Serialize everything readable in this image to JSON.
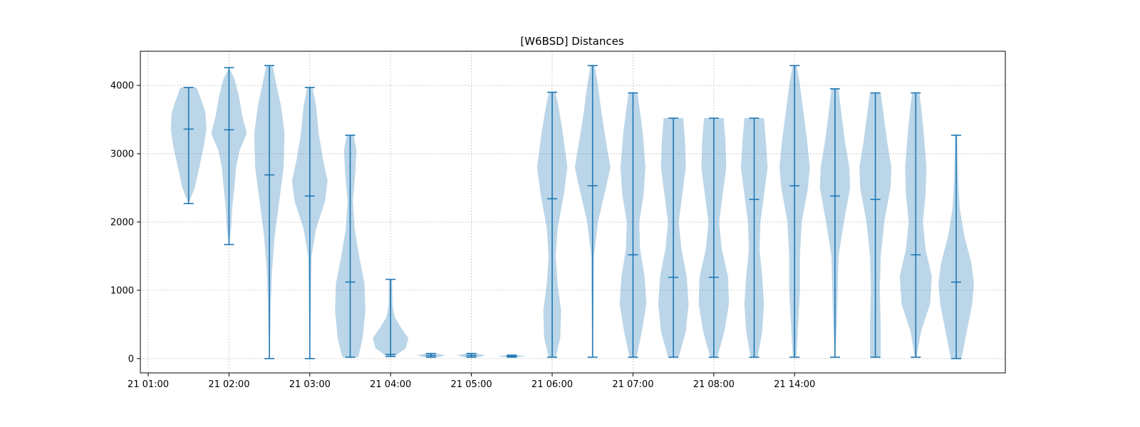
{
  "chart_data": {
    "type": "violin",
    "title": "[W6BSD] Distances",
    "xlabel": "",
    "ylabel": "",
    "ylim": [
      -210,
      4500
    ],
    "grid": true,
    "grid_style": "dotted",
    "colors": {
      "body": "#1f77b4",
      "line": "#1f77b4",
      "grid": "#b0b0b0"
    },
    "x_ticks": [
      "21 01:00",
      "21 02:00",
      "21 03:00",
      "21 04:00",
      "21 05:00",
      "21 06:00",
      "21 07:00",
      "21 08:00",
      "21 14:00"
    ],
    "y_ticks": [
      0,
      1000,
      2000,
      3000,
      4000
    ],
    "violins": [
      {
        "min": 2270,
        "max": 3970,
        "median": 3360,
        "density": [
          [
            2270,
            0.0
          ],
          [
            2500,
            0.35
          ],
          [
            2800,
            0.6
          ],
          [
            3100,
            0.85
          ],
          [
            3350,
            1.0
          ],
          [
            3600,
            0.95
          ],
          [
            3800,
            0.7
          ],
          [
            3970,
            0.45
          ]
        ]
      },
      {
        "min": 1670,
        "max": 4260,
        "median": 3350,
        "density": [
          [
            1670,
            0.0
          ],
          [
            1900,
            0.12
          ],
          [
            2200,
            0.18
          ],
          [
            2500,
            0.3
          ],
          [
            2800,
            0.4
          ],
          [
            3050,
            0.6
          ],
          [
            3300,
            1.0
          ],
          [
            3550,
            0.75
          ],
          [
            3850,
            0.55
          ],
          [
            4100,
            0.3
          ],
          [
            4260,
            0.0
          ]
        ]
      },
      {
        "min": 0,
        "max": 4290,
        "median": 2690,
        "density": [
          [
            0,
            0.0
          ],
          [
            400,
            0.05
          ],
          [
            800,
            0.08
          ],
          [
            1300,
            0.15
          ],
          [
            1800,
            0.3
          ],
          [
            2300,
            0.55
          ],
          [
            2800,
            0.8
          ],
          [
            3300,
            0.85
          ],
          [
            3700,
            0.65
          ],
          [
            4000,
            0.4
          ],
          [
            4290,
            0.18
          ]
        ]
      },
      {
        "min": 0,
        "max": 3970,
        "median": 2380,
        "density": [
          [
            0,
            0.0
          ],
          [
            500,
            0.04
          ],
          [
            1000,
            0.06
          ],
          [
            1500,
            0.1
          ],
          [
            1900,
            0.35
          ],
          [
            2300,
            0.85
          ],
          [
            2600,
            1.0
          ],
          [
            2900,
            0.75
          ],
          [
            3300,
            0.5
          ],
          [
            3700,
            0.35
          ],
          [
            3970,
            0.15
          ]
        ]
      },
      {
        "min": 20,
        "max": 3270,
        "median": 1120,
        "density": [
          [
            20,
            0.45
          ],
          [
            300,
            0.7
          ],
          [
            700,
            0.85
          ],
          [
            1100,
            0.8
          ],
          [
            1500,
            0.5
          ],
          [
            1900,
            0.25
          ],
          [
            2300,
            0.15
          ],
          [
            2700,
            0.28
          ],
          [
            3050,
            0.35
          ],
          [
            3270,
            0.2
          ]
        ]
      },
      {
        "min": 30,
        "max": 1160,
        "median": 60,
        "density": [
          [
            30,
            0.2
          ],
          [
            150,
            0.85
          ],
          [
            300,
            1.0
          ],
          [
            450,
            0.6
          ],
          [
            600,
            0.25
          ],
          [
            750,
            0.12
          ],
          [
            900,
            0.1
          ],
          [
            1050,
            0.1
          ],
          [
            1160,
            0.08
          ]
        ]
      },
      {
        "min": 20,
        "max": 75,
        "median": 45,
        "density": [
          [
            20,
            0.4
          ],
          [
            45,
            0.8
          ],
          [
            75,
            0.3
          ]
        ]
      },
      {
        "min": 20,
        "max": 75,
        "median": 45,
        "density": [
          [
            20,
            0.4
          ],
          [
            45,
            0.8
          ],
          [
            75,
            0.3
          ]
        ]
      },
      {
        "min": 20,
        "max": 50,
        "median": 35,
        "density": [
          [
            20,
            0.4
          ],
          [
            35,
            0.8
          ],
          [
            50,
            0.3
          ]
        ]
      },
      {
        "min": 20,
        "max": 3900,
        "median": 2340,
        "density": [
          [
            20,
            0.2
          ],
          [
            300,
            0.45
          ],
          [
            700,
            0.5
          ],
          [
            1100,
            0.3
          ],
          [
            1500,
            0.2
          ],
          [
            1900,
            0.3
          ],
          [
            2400,
            0.65
          ],
          [
            2800,
            0.85
          ],
          [
            3300,
            0.6
          ],
          [
            3700,
            0.35
          ],
          [
            3900,
            0.18
          ]
        ]
      },
      {
        "min": 20,
        "max": 4290,
        "median": 2530,
        "density": [
          [
            20,
            0.0
          ],
          [
            500,
            0.04
          ],
          [
            1000,
            0.06
          ],
          [
            1500,
            0.08
          ],
          [
            2000,
            0.3
          ],
          [
            2500,
            0.75
          ],
          [
            2800,
            1.0
          ],
          [
            3100,
            0.8
          ],
          [
            3600,
            0.5
          ],
          [
            4000,
            0.3
          ],
          [
            4290,
            0.12
          ]
        ]
      },
      {
        "min": 20,
        "max": 3890,
        "median": 1520,
        "density": [
          [
            20,
            0.2
          ],
          [
            400,
            0.5
          ],
          [
            800,
            0.75
          ],
          [
            1200,
            0.65
          ],
          [
            1600,
            0.4
          ],
          [
            2000,
            0.35
          ],
          [
            2400,
            0.6
          ],
          [
            2800,
            0.7
          ],
          [
            3300,
            0.55
          ],
          [
            3700,
            0.35
          ],
          [
            3890,
            0.25
          ]
        ]
      },
      {
        "min": 20,
        "max": 3520,
        "median": 1190,
        "density": [
          [
            20,
            0.3
          ],
          [
            400,
            0.7
          ],
          [
            800,
            0.85
          ],
          [
            1200,
            0.75
          ],
          [
            1600,
            0.45
          ],
          [
            2000,
            0.3
          ],
          [
            2400,
            0.5
          ],
          [
            2800,
            0.7
          ],
          [
            3200,
            0.65
          ],
          [
            3520,
            0.55
          ]
        ]
      },
      {
        "min": 20,
        "max": 3520,
        "median": 1190,
        "density": [
          [
            20,
            0.2
          ],
          [
            400,
            0.6
          ],
          [
            800,
            0.85
          ],
          [
            1200,
            0.8
          ],
          [
            1600,
            0.45
          ],
          [
            2000,
            0.3
          ],
          [
            2400,
            0.5
          ],
          [
            2800,
            0.7
          ],
          [
            3200,
            0.65
          ],
          [
            3520,
            0.55
          ]
        ]
      },
      {
        "min": 20,
        "max": 3520,
        "median": 2330,
        "density": [
          [
            20,
            0.2
          ],
          [
            400,
            0.45
          ],
          [
            800,
            0.55
          ],
          [
            1200,
            0.45
          ],
          [
            1600,
            0.3
          ],
          [
            2000,
            0.35
          ],
          [
            2400,
            0.55
          ],
          [
            2800,
            0.75
          ],
          [
            3200,
            0.65
          ],
          [
            3520,
            0.55
          ]
        ]
      },
      {
        "min": 20,
        "max": 4290,
        "median": 2530,
        "density": [
          [
            20,
            0.1
          ],
          [
            500,
            0.2
          ],
          [
            1000,
            0.3
          ],
          [
            1500,
            0.3
          ],
          [
            2000,
            0.4
          ],
          [
            2500,
            0.75
          ],
          [
            2800,
            0.85
          ],
          [
            3200,
            0.7
          ],
          [
            3700,
            0.45
          ],
          [
            4100,
            0.25
          ],
          [
            4290,
            0.1
          ]
        ]
      },
      {
        "min": 20,
        "max": 3950,
        "median": 2380,
        "density": [
          [
            20,
            0.0
          ],
          [
            500,
            0.1
          ],
          [
            1000,
            0.15
          ],
          [
            1500,
            0.2
          ],
          [
            2000,
            0.5
          ],
          [
            2500,
            0.85
          ],
          [
            2800,
            0.8
          ],
          [
            3200,
            0.55
          ],
          [
            3600,
            0.35
          ],
          [
            3950,
            0.2
          ]
        ]
      },
      {
        "min": 20,
        "max": 3890,
        "median": 2330,
        "density": [
          [
            20,
            0.3
          ],
          [
            500,
            0.3
          ],
          [
            1000,
            0.25
          ],
          [
            1500,
            0.3
          ],
          [
            2000,
            0.5
          ],
          [
            2500,
            0.85
          ],
          [
            2800,
            0.9
          ],
          [
            3200,
            0.65
          ],
          [
            3600,
            0.45
          ],
          [
            3890,
            0.3
          ]
        ]
      },
      {
        "min": 20,
        "max": 3890,
        "median": 1520,
        "density": [
          [
            20,
            0.05
          ],
          [
            400,
            0.3
          ],
          [
            800,
            0.8
          ],
          [
            1200,
            0.9
          ],
          [
            1600,
            0.55
          ],
          [
            2000,
            0.4
          ],
          [
            2400,
            0.55
          ],
          [
            2800,
            0.6
          ],
          [
            3300,
            0.45
          ],
          [
            3700,
            0.3
          ],
          [
            3890,
            0.2
          ]
        ]
      },
      {
        "min": 0,
        "max": 3270,
        "median": 1120,
        "density": [
          [
            0,
            0.3
          ],
          [
            400,
            0.6
          ],
          [
            800,
            0.9
          ],
          [
            1100,
            1.0
          ],
          [
            1400,
            0.85
          ],
          [
            1800,
            0.45
          ],
          [
            2200,
            0.2
          ],
          [
            2600,
            0.12
          ],
          [
            3000,
            0.08
          ],
          [
            3270,
            0.06
          ]
        ]
      }
    ]
  }
}
